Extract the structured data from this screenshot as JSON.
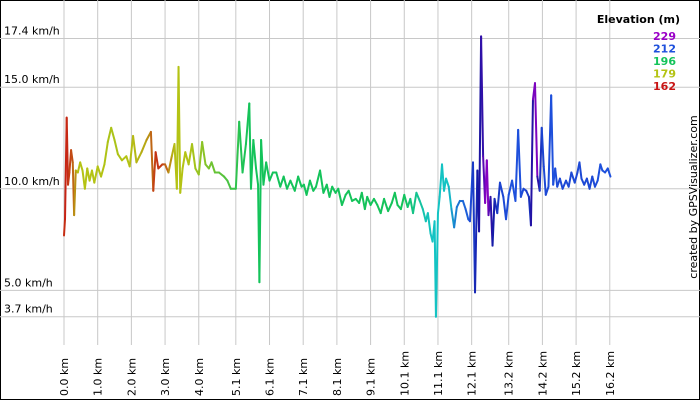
{
  "chart_data": {
    "type": "line",
    "title": "",
    "xlabel": "",
    "ylabel": "",
    "xlim": [
      0,
      16.8
    ],
    "ylim": [
      2.8,
      18.8
    ],
    "grid": true,
    "legend_placement": "top-right",
    "y_ticks": [
      {
        "value": 3.7,
        "label": "3.7 km/h"
      },
      {
        "value": 5.0,
        "label": "5.0 km/h"
      },
      {
        "value": 10.0,
        "label": "10.0 km/h"
      },
      {
        "value": 15.0,
        "label": "15.0 km/h"
      },
      {
        "value": 17.4,
        "label": "17.4 km/h"
      }
    ],
    "x_ticks": [
      {
        "value": 0.0,
        "label": "0.0 km"
      },
      {
        "value": 1.0,
        "label": "1.0 km"
      },
      {
        "value": 2.0,
        "label": "2.0 km"
      },
      {
        "value": 3.0,
        "label": "3.0 km"
      },
      {
        "value": 4.0,
        "label": "4.0 km"
      },
      {
        "value": 5.1,
        "label": "5.1 km"
      },
      {
        "value": 6.1,
        "label": "6.1 km"
      },
      {
        "value": 7.1,
        "label": "7.1 km"
      },
      {
        "value": 8.1,
        "label": "8.1 km"
      },
      {
        "value": 9.1,
        "label": "9.1 km"
      },
      {
        "value": 10.1,
        "label": "10.1 km"
      },
      {
        "value": 11.1,
        "label": "11.1 km"
      },
      {
        "value": 12.1,
        "label": "12.1 km"
      },
      {
        "value": 13.2,
        "label": "13.2 km"
      },
      {
        "value": 14.2,
        "label": "14.2 km"
      },
      {
        "value": 15.2,
        "label": "15.2 km"
      },
      {
        "value": 16.2,
        "label": "16.2 km"
      }
    ],
    "legend": {
      "title": "Elevation (m)",
      "items": [
        {
          "label": "229",
          "color": "#9b00c8"
        },
        {
          "label": "212",
          "color": "#1e50dc"
        },
        {
          "label": "196",
          "color": "#14c35a"
        },
        {
          "label": "179",
          "color": "#b4c314"
        },
        {
          "label": "162",
          "color": "#c81414"
        }
      ]
    },
    "gradient_stops": [
      {
        "elevation": 162,
        "color": "#c81414"
      },
      {
        "elevation": 179,
        "color": "#b4c314"
      },
      {
        "elevation": 196,
        "color": "#14c35a"
      },
      {
        "elevation": 204,
        "color": "#14c3c3"
      },
      {
        "elevation": 212,
        "color": "#1e50dc"
      },
      {
        "elevation": 220,
        "color": "#1414a0"
      },
      {
        "elevation": 229,
        "color": "#9b00c8"
      }
    ],
    "series": [
      {
        "points": [
          [
            0.0,
            7.7,
            165
          ],
          [
            0.03,
            8.5,
            164
          ],
          [
            0.08,
            13.5,
            163
          ],
          [
            0.12,
            10.2,
            165
          ],
          [
            0.16,
            10.8,
            166
          ],
          [
            0.21,
            11.9,
            167
          ],
          [
            0.26,
            11.3,
            168
          ],
          [
            0.3,
            8.7,
            172
          ],
          [
            0.35,
            10.9,
            176
          ],
          [
            0.41,
            10.8,
            178
          ],
          [
            0.48,
            11.3,
            179
          ],
          [
            0.55,
            10.9,
            179
          ],
          [
            0.62,
            10.0,
            179
          ],
          [
            0.69,
            11.0,
            179
          ],
          [
            0.76,
            10.4,
            179
          ],
          [
            0.83,
            10.9,
            179
          ],
          [
            0.9,
            10.3,
            179
          ],
          [
            1.0,
            11.1,
            179
          ],
          [
            1.1,
            10.6,
            179
          ],
          [
            1.2,
            11.2,
            179
          ],
          [
            1.3,
            12.3,
            180
          ],
          [
            1.4,
            13.0,
            180
          ],
          [
            1.5,
            12.4,
            180
          ],
          [
            1.6,
            11.7,
            180
          ],
          [
            1.72,
            11.4,
            179
          ],
          [
            1.85,
            11.6,
            179
          ],
          [
            1.95,
            11.1,
            179
          ],
          [
            2.05,
            12.6,
            178
          ],
          [
            2.15,
            11.3,
            178
          ],
          [
            2.3,
            11.8,
            177
          ],
          [
            2.45,
            12.4,
            176
          ],
          [
            2.58,
            12.8,
            172
          ],
          [
            2.65,
            9.9,
            168
          ],
          [
            2.72,
            11.8,
            165
          ],
          [
            2.8,
            11.0,
            165
          ],
          [
            2.92,
            11.2,
            166
          ],
          [
            3.0,
            11.2,
            168
          ],
          [
            3.1,
            10.8,
            172
          ],
          [
            3.2,
            11.6,
            176
          ],
          [
            3.28,
            12.2,
            178
          ],
          [
            3.35,
            10.0,
            179
          ],
          [
            3.4,
            16.0,
            179
          ],
          [
            3.45,
            9.8,
            179
          ],
          [
            3.52,
            11.0,
            179
          ],
          [
            3.6,
            11.8,
            179
          ],
          [
            3.7,
            11.2,
            179
          ],
          [
            3.8,
            12.2,
            180
          ],
          [
            3.9,
            11.0,
            181
          ],
          [
            4.0,
            10.7,
            182
          ],
          [
            4.1,
            12.3,
            183
          ],
          [
            4.2,
            11.2,
            184
          ],
          [
            4.3,
            11.0,
            185
          ],
          [
            4.38,
            11.3,
            186
          ],
          [
            4.48,
            10.8,
            187
          ],
          [
            4.6,
            10.8,
            188
          ],
          [
            4.75,
            10.6,
            189
          ],
          [
            4.85,
            10.4,
            190
          ],
          [
            4.95,
            10.0,
            191
          ],
          [
            5.1,
            10.0,
            192
          ],
          [
            5.2,
            13.3,
            194
          ],
          [
            5.3,
            10.8,
            195
          ],
          [
            5.4,
            12.2,
            195
          ],
          [
            5.5,
            14.2,
            196
          ],
          [
            5.55,
            10.0,
            196
          ],
          [
            5.62,
            12.4,
            196
          ],
          [
            5.7,
            11.0,
            196
          ],
          [
            5.76,
            10.2,
            196
          ],
          [
            5.8,
            5.4,
            196
          ],
          [
            5.85,
            12.4,
            196
          ],
          [
            5.92,
            10.2,
            196
          ],
          [
            6.0,
            11.3,
            196
          ],
          [
            6.1,
            10.4,
            196
          ],
          [
            6.2,
            10.8,
            196
          ],
          [
            6.3,
            10.8,
            196
          ],
          [
            6.42,
            10.1,
            196
          ],
          [
            6.52,
            10.6,
            196
          ],
          [
            6.62,
            10.0,
            196
          ],
          [
            6.72,
            10.4,
            196
          ],
          [
            6.85,
            9.9,
            196
          ],
          [
            6.95,
            10.6,
            196
          ],
          [
            7.05,
            10.1,
            196
          ],
          [
            7.12,
            10.2,
            196
          ],
          [
            7.2,
            9.7,
            196
          ],
          [
            7.3,
            10.4,
            196
          ],
          [
            7.4,
            9.9,
            196
          ],
          [
            7.48,
            10.1,
            196
          ],
          [
            7.6,
            10.9,
            196
          ],
          [
            7.7,
            9.8,
            196
          ],
          [
            7.8,
            10.2,
            196
          ],
          [
            7.88,
            9.6,
            196
          ],
          [
            7.96,
            10.1,
            196
          ],
          [
            8.06,
            9.8,
            196
          ],
          [
            8.14,
            10.0,
            196
          ],
          [
            8.25,
            9.2,
            196
          ],
          [
            8.36,
            9.7,
            196
          ],
          [
            8.45,
            9.9,
            196
          ],
          [
            8.55,
            9.4,
            196
          ],
          [
            8.66,
            9.5,
            196
          ],
          [
            8.76,
            9.3,
            196
          ],
          [
            8.84,
            9.8,
            196
          ],
          [
            8.93,
            9.0,
            196
          ],
          [
            9.0,
            9.6,
            196
          ],
          [
            9.1,
            9.2,
            196
          ],
          [
            9.2,
            9.5,
            196
          ],
          [
            9.3,
            9.2,
            196
          ],
          [
            9.4,
            8.8,
            196
          ],
          [
            9.5,
            9.5,
            196
          ],
          [
            9.62,
            8.9,
            196
          ],
          [
            9.73,
            9.3,
            196
          ],
          [
            9.82,
            9.8,
            196
          ],
          [
            9.9,
            9.2,
            196
          ],
          [
            10.0,
            9.0,
            196
          ],
          [
            10.1,
            9.7,
            196
          ],
          [
            10.2,
            9.1,
            197
          ],
          [
            10.28,
            9.5,
            198
          ],
          [
            10.36,
            8.8,
            199
          ],
          [
            10.46,
            9.8,
            200
          ],
          [
            10.56,
            9.4,
            201
          ],
          [
            10.65,
            9.0,
            202
          ],
          [
            10.74,
            8.4,
            203
          ],
          [
            10.8,
            8.8,
            203
          ],
          [
            10.88,
            7.8,
            204
          ],
          [
            10.94,
            7.4,
            204
          ],
          [
            11.0,
            8.4,
            204
          ],
          [
            11.04,
            3.7,
            204
          ],
          [
            11.1,
            8.8,
            204
          ],
          [
            11.15,
            9.6,
            204
          ],
          [
            11.22,
            11.2,
            204
          ],
          [
            11.28,
            9.9,
            204
          ],
          [
            11.34,
            10.5,
            204
          ],
          [
            11.42,
            10.1,
            204
          ],
          [
            11.5,
            9.0,
            206
          ],
          [
            11.58,
            8.1,
            208
          ],
          [
            11.66,
            9.1,
            209
          ],
          [
            11.75,
            9.4,
            210
          ],
          [
            11.84,
            9.4,
            210
          ],
          [
            11.92,
            9.0,
            211
          ],
          [
            12.0,
            8.5,
            211
          ],
          [
            12.05,
            8.4,
            212
          ],
          [
            12.14,
            11.3,
            214
          ],
          [
            12.2,
            4.9,
            216
          ],
          [
            12.27,
            10.9,
            219
          ],
          [
            12.32,
            7.9,
            220
          ],
          [
            12.38,
            17.5,
            221
          ],
          [
            12.44,
            11.6,
            223
          ],
          [
            12.5,
            9.3,
            226
          ],
          [
            12.55,
            11.4,
            229
          ],
          [
            12.6,
            8.7,
            226
          ],
          [
            12.66,
            9.6,
            223
          ],
          [
            12.72,
            7.2,
            220
          ],
          [
            12.78,
            9.5,
            218
          ],
          [
            12.86,
            8.8,
            216
          ],
          [
            12.94,
            10.3,
            214
          ],
          [
            13.04,
            9.6,
            213
          ],
          [
            13.12,
            8.5,
            213
          ],
          [
            13.2,
            9.7,
            212
          ],
          [
            13.3,
            10.4,
            212
          ],
          [
            13.4,
            9.4,
            212
          ],
          [
            13.48,
            12.9,
            212
          ],
          [
            13.56,
            9.6,
            212
          ],
          [
            13.64,
            10.0,
            213
          ],
          [
            13.72,
            9.9,
            214
          ],
          [
            13.8,
            9.6,
            215
          ],
          [
            13.86,
            8.2,
            218
          ],
          [
            13.92,
            14.4,
            224
          ],
          [
            13.98,
            15.2,
            229
          ],
          [
            14.05,
            10.6,
            225
          ],
          [
            14.12,
            9.9,
            218
          ],
          [
            14.18,
            13.0,
            214
          ],
          [
            14.24,
            11.1,
            213
          ],
          [
            14.3,
            9.7,
            213
          ],
          [
            14.38,
            10.1,
            213
          ],
          [
            14.46,
            14.6,
            212
          ],
          [
            14.52,
            10.2,
            212
          ],
          [
            14.58,
            11.0,
            212
          ],
          [
            14.64,
            10.1,
            213
          ],
          [
            14.72,
            10.5,
            213
          ],
          [
            14.8,
            10.0,
            213
          ],
          [
            14.9,
            10.4,
            213
          ],
          [
            14.98,
            10.1,
            213
          ],
          [
            15.06,
            10.8,
            213
          ],
          [
            15.16,
            10.3,
            213
          ],
          [
            15.24,
            10.8,
            213
          ],
          [
            15.3,
            11.3,
            213
          ],
          [
            15.36,
            10.5,
            213
          ],
          [
            15.44,
            10.2,
            213
          ],
          [
            15.52,
            10.5,
            213
          ],
          [
            15.6,
            10.0,
            213
          ],
          [
            15.68,
            10.6,
            213
          ],
          [
            15.76,
            10.1,
            213
          ],
          [
            15.84,
            10.4,
            212
          ],
          [
            15.92,
            11.2,
            212
          ],
          [
            15.98,
            10.9,
            212
          ],
          [
            16.06,
            10.8,
            212
          ],
          [
            16.14,
            11.0,
            212
          ],
          [
            16.22,
            10.6,
            212
          ]
        ]
      }
    ]
  },
  "credit": "created by GPSVisualizer.com"
}
